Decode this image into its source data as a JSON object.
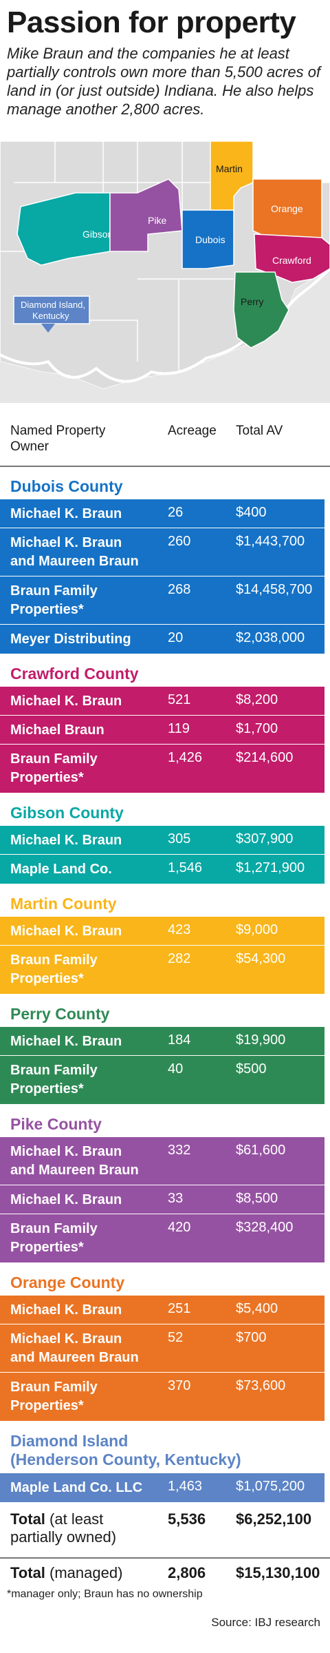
{
  "title": "Passion for property",
  "subtitle": "Mike Braun and the companies he at least partially controls own more than 5,500 acres of land in (or just outside) Indiana. He also helps manage another 2,800 acres.",
  "colors": {
    "dubois": "#1572c6",
    "crawford": "#c21c6a",
    "gibson": "#08a8a4",
    "martin": "#f9b519",
    "perry": "#2e8a55",
    "pike": "#9652a2",
    "orange": "#ea7424",
    "diamond": "#5c84c6"
  },
  "map": {
    "labels": {
      "martin": "Martin",
      "orange": "Orange",
      "crawford": "Crawford",
      "pike": "Pike",
      "dubois": "Dubois",
      "gibson": "Gibson",
      "perry": "Perry",
      "diamond_line1": "Diamond Island,",
      "diamond_line2": "Kentucky"
    }
  },
  "table": {
    "headers": {
      "owner_line1": "Named Property",
      "owner_line2": "Owner",
      "acreage": "Acreage",
      "total_av": "Total AV"
    },
    "sections": [
      {
        "title": "Dubois County",
        "rows": [
          {
            "owner1": "Michael K. Braun",
            "owner2": "",
            "acreage": "26",
            "av": "$400"
          },
          {
            "owner1": "Michael K. Braun",
            "owner2": "and Maureen Braun",
            "acreage": "260",
            "av": "$1,443,700"
          },
          {
            "owner1": "Braun Family",
            "owner2": "Properties*",
            "acreage": "268",
            "av": "$14,458,700"
          },
          {
            "owner1": "Meyer Distributing",
            "owner2": "",
            "acreage": "20",
            "av": "$2,038,000"
          }
        ]
      },
      {
        "title": "Crawford County",
        "rows": [
          {
            "owner1": "Michael K. Braun",
            "owner2": "",
            "acreage": "521",
            "av": "$8,200"
          },
          {
            "owner1": "Michael Braun",
            "owner2": "",
            "acreage": "119",
            "av": "$1,700"
          },
          {
            "owner1": "Braun Family",
            "owner2": "Properties*",
            "acreage": "1,426",
            "av": "$214,600"
          }
        ]
      },
      {
        "title": "Gibson County",
        "rows": [
          {
            "owner1": "Michael K. Braun",
            "owner2": "",
            "acreage": "305",
            "av": "$307,900"
          },
          {
            "owner1": "Maple Land Co.",
            "owner2": "",
            "acreage": "1,546",
            "av": "$1,271,900"
          }
        ]
      },
      {
        "title": "Martin County",
        "rows": [
          {
            "owner1": "Michael K. Braun",
            "owner2": "",
            "acreage": "423",
            "av": "$9,000"
          },
          {
            "owner1": "Braun Family",
            "owner2": "Properties*",
            "acreage": "282",
            "av": "$54,300"
          }
        ]
      },
      {
        "title": "Perry County",
        "rows": [
          {
            "owner1": "Michael K. Braun",
            "owner2": "",
            "acreage": "184",
            "av": "$19,900"
          },
          {
            "owner1": "Braun Family",
            "owner2": "Properties*",
            "acreage": "40",
            "av": "$500"
          }
        ]
      },
      {
        "title": "Pike County",
        "rows": [
          {
            "owner1": "Michael K. Braun",
            "owner2": "and Maureen Braun",
            "acreage": "332",
            "av": "$61,600"
          },
          {
            "owner1": "Michael K. Braun",
            "owner2": "",
            "acreage": "33",
            "av": "$8,500"
          },
          {
            "owner1": "Braun Family",
            "owner2": "Properties*",
            "acreage": "420",
            "av": "$328,400"
          }
        ]
      },
      {
        "title": "Orange County",
        "rows": [
          {
            "owner1": "Michael K. Braun",
            "owner2": "",
            "acreage": "251",
            "av": "$5,400"
          },
          {
            "owner1": "Michael K. Braun",
            "owner2": "and Maureen Braun",
            "acreage": "52",
            "av": "$700"
          },
          {
            "owner1": "Braun Family",
            "owner2": "Properties*",
            "acreage": "370",
            "av": "$73,600"
          }
        ]
      },
      {
        "title": "Diamond Island",
        "title2": "(Henderson County, Kentucky)",
        "rows": [
          {
            "owner1": "Maple Land Co. LLC",
            "owner2": "",
            "acreage": "1,463",
            "av": "$1,075,200"
          }
        ]
      }
    ],
    "totals": [
      {
        "label_bold": "Total",
        "label_rest": " (at least",
        "label_line2": "partially owned)",
        "acreage": "5,536",
        "av": "$6,252,100"
      },
      {
        "label_bold": "Total",
        "label_rest": " (managed)",
        "label_line2": "",
        "acreage": "2,806",
        "av": "$15,130,100"
      }
    ]
  },
  "footnote": "*manager only; Braun has no ownership",
  "source": "Source: IBJ research"
}
